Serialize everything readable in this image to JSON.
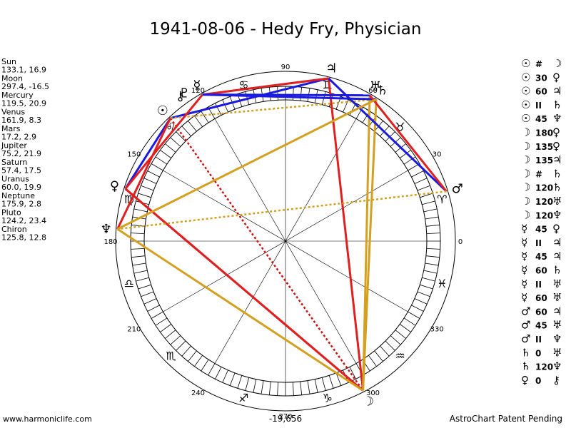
{
  "header": {
    "title": "1941-08-06 - Hedy Fry, Physician"
  },
  "planets": [
    {
      "name": "Sun",
      "position": "133.1, 16.9",
      "glyph": "☉"
    },
    {
      "name": "Moon",
      "position": "297.4, -16.5",
      "glyph": "☽"
    },
    {
      "name": "Mercury",
      "position": "119.5, 20.9",
      "glyph": "☿"
    },
    {
      "name": "Venus",
      "position": "161.9, 8.3",
      "glyph": "♀"
    },
    {
      "name": "Mars",
      "position": "17.2, 2.9",
      "glyph": "♂"
    },
    {
      "name": "Jupiter",
      "position": "75.2, 21.9",
      "glyph": "♃"
    },
    {
      "name": "Saturn",
      "position": "57.4, 17.5",
      "glyph": "♄"
    },
    {
      "name": "Uranus",
      "position": "60.0, 19.9",
      "glyph": "♅"
    },
    {
      "name": "Neptune",
      "position": "175.9, 2.8",
      "glyph": "♆"
    },
    {
      "name": "Pluto",
      "position": "124.2, 23.4",
      "glyph": "♇"
    },
    {
      "name": "Chiron",
      "position": "125.8, 12.8",
      "glyph": "⚷"
    }
  ],
  "signs": [
    "♈",
    "♉",
    "♊",
    "♋",
    "♌",
    "♍",
    "♎",
    "♏",
    "♐",
    "♑",
    "♒",
    "♓"
  ],
  "degree_labels": [
    0,
    30,
    60,
    90,
    120,
    150,
    180,
    210,
    240,
    270,
    300,
    330
  ],
  "aspects": [
    {
      "p1": "☉",
      "aspect": "#",
      "p2": "☽"
    },
    {
      "p1": "☉",
      "aspect": "30",
      "p2": "♀"
    },
    {
      "p1": "☉",
      "aspect": "60",
      "p2": "♃"
    },
    {
      "p1": "☉",
      "aspect": "II",
      "p2": "♄"
    },
    {
      "p1": "☉",
      "aspect": "45",
      "p2": "♆"
    },
    {
      "p1": "☽",
      "aspect": "180",
      "p2": "♀"
    },
    {
      "p1": "☽",
      "aspect": "135",
      "p2": "♀"
    },
    {
      "p1": "☽",
      "aspect": "135",
      "p2": "♃"
    },
    {
      "p1": "☽",
      "aspect": "#",
      "p2": "♄"
    },
    {
      "p1": "☽",
      "aspect": "120",
      "p2": "♄"
    },
    {
      "p1": "☽",
      "aspect": "120",
      "p2": "♅"
    },
    {
      "p1": "☽",
      "aspect": "120",
      "p2": "♆"
    },
    {
      "p1": "☿",
      "aspect": "45",
      "p2": "♀"
    },
    {
      "p1": "☿",
      "aspect": "II",
      "p2": "♃"
    },
    {
      "p1": "☿",
      "aspect": "45",
      "p2": "♃"
    },
    {
      "p1": "☿",
      "aspect": "60",
      "p2": "♄"
    },
    {
      "p1": "☿",
      "aspect": "II",
      "p2": "♅"
    },
    {
      "p1": "☿",
      "aspect": "60",
      "p2": "♅"
    },
    {
      "p1": "♂",
      "aspect": "60",
      "p2": "♃"
    },
    {
      "p1": "♂",
      "aspect": "45",
      "p2": "♅"
    },
    {
      "p1": "♂",
      "aspect": "II",
      "p2": "♆"
    },
    {
      "p1": "♄",
      "aspect": "0",
      "p2": "♅"
    },
    {
      "p1": "♄",
      "aspect": "120",
      "p2": "♆"
    },
    {
      "p1": "♀",
      "aspect": "0",
      "p2": "⚷"
    }
  ],
  "aspect_colors": {
    "180": "#e02020",
    "135": "#e02020",
    "45": "#e02020",
    "60": "#1a1ae0",
    "30": "#1a1ae0",
    "120": "#d4a020",
    "#": "#d01010",
    "II": "#d4a020"
  },
  "aspect_dashed": [
    "#",
    "II"
  ],
  "footer": {
    "website": "www.harmoniclife.com",
    "number": "-19,656",
    "notice": "AstroChart Patent Pending"
  }
}
